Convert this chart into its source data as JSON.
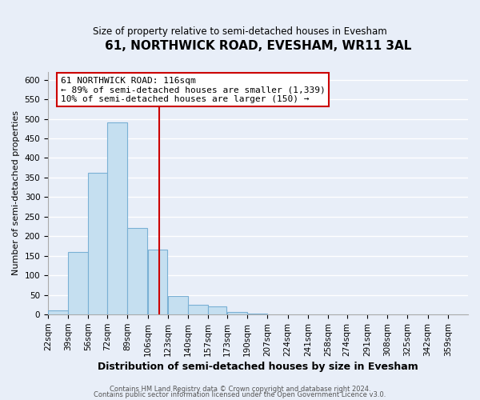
{
  "title": "61, NORTHWICK ROAD, EVESHAM, WR11 3AL",
  "subtitle": "Size of property relative to semi-detached houses in Evesham",
  "xlabel": "Distribution of semi-detached houses by size in Evesham",
  "ylabel": "Number of semi-detached properties",
  "bin_labels": [
    "22sqm",
    "39sqm",
    "56sqm",
    "72sqm",
    "89sqm",
    "106sqm",
    "123sqm",
    "140sqm",
    "157sqm",
    "173sqm",
    "190sqm",
    "207sqm",
    "224sqm",
    "241sqm",
    "258sqm",
    "274sqm",
    "291sqm",
    "308sqm",
    "325sqm",
    "342sqm",
    "359sqm"
  ],
  "bar_values": [
    10,
    160,
    362,
    490,
    221,
    165,
    47,
    25,
    20,
    7,
    2,
    1,
    1,
    0,
    1,
    0,
    0,
    0,
    0,
    0,
    1
  ],
  "bar_color": "#c5dff0",
  "bar_edge_color": "#7ab0d4",
  "subject_line_color": "#cc0000",
  "annotation_title": "61 NORTHWICK ROAD: 116sqm",
  "annotation_line1": "← 89% of semi-detached houses are smaller (1,339)",
  "annotation_line2": "10% of semi-detached houses are larger (150) →",
  "annotation_box_color": "#ffffff",
  "annotation_box_edge": "#cc0000",
  "ylim": [
    0,
    620
  ],
  "yticks": [
    0,
    50,
    100,
    150,
    200,
    250,
    300,
    350,
    400,
    450,
    500,
    550,
    600
  ],
  "footer1": "Contains HM Land Registry data © Crown copyright and database right 2024.",
  "footer2": "Contains public sector information licensed under the Open Government Licence v3.0.",
  "bg_color": "#e8eef8",
  "grid_color": "#ffffff"
}
